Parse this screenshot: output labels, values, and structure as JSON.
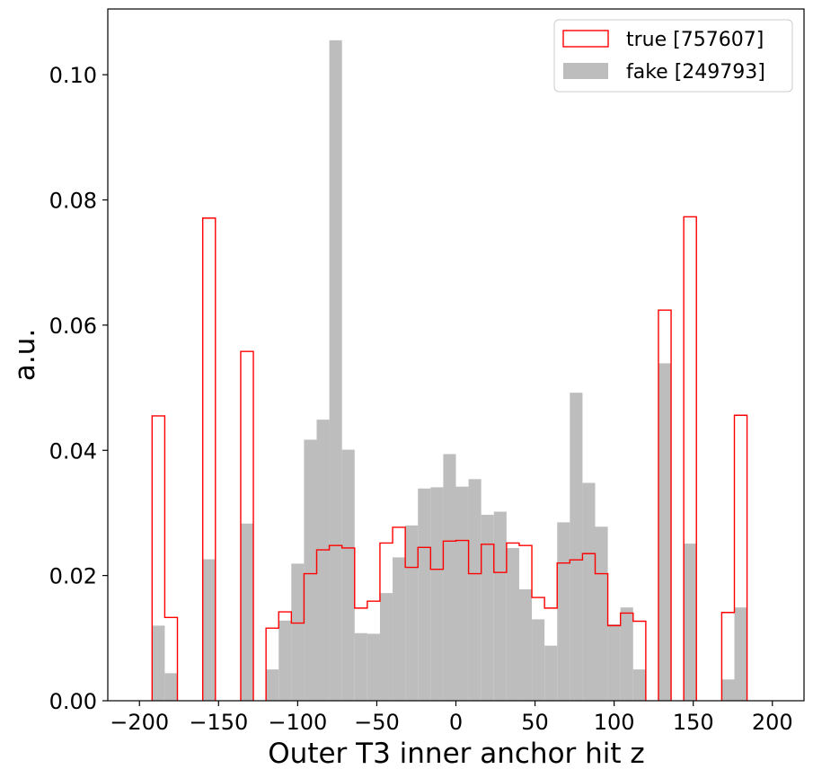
{
  "chart_data": {
    "type": "bar",
    "title": "",
    "xlabel": "Outer T3 inner anchor hit z",
    "ylabel": "a.u.",
    "xlim": [
      -220,
      220
    ],
    "ylim": [
      0,
      0.1105
    ],
    "x_ticks": [
      -200,
      -150,
      -100,
      -50,
      0,
      50,
      100,
      150,
      200
    ],
    "x_tick_labels": [
      "−200",
      "−150",
      "−100",
      "−50",
      "0",
      "50",
      "100",
      "150",
      "200"
    ],
    "y_ticks": [
      0.0,
      0.02,
      0.04,
      0.06,
      0.08,
      0.1
    ],
    "y_tick_labels": [
      "0.00",
      "0.02",
      "0.04",
      "0.06",
      "0.08",
      "0.10"
    ],
    "grid": false,
    "legend_position": "top-right",
    "bin_edges": [
      -200,
      -192,
      -184,
      -176,
      -168,
      -160,
      -152,
      -144,
      -136,
      -128,
      -120,
      -112,
      -104,
      -96,
      -88,
      -80,
      -72,
      -64,
      -56,
      -48,
      -40,
      -32,
      -24,
      -16,
      -8,
      0,
      8,
      16,
      24,
      32,
      40,
      48,
      56,
      64,
      72,
      80,
      88,
      96,
      104,
      112,
      120,
      128,
      136,
      144,
      152,
      160,
      168,
      176,
      184,
      192,
      200
    ],
    "series": [
      {
        "name": "true [757607]",
        "style": "step",
        "color": "#ff0000",
        "values": [
          0,
          0.0455,
          0.0133,
          0,
          0,
          0.0771,
          0,
          0,
          0.0558,
          0,
          0.0116,
          0.0142,
          0.0124,
          0.0203,
          0.0241,
          0.0248,
          0.0244,
          0.0148,
          0.0159,
          0.0252,
          0.0277,
          0.0213,
          0.0245,
          0.021,
          0.0255,
          0.0256,
          0.0203,
          0.025,
          0.0205,
          0.0252,
          0.0248,
          0.0165,
          0.0148,
          0.022,
          0.0225,
          0.0235,
          0.0203,
          0.012,
          0.014,
          0.0127,
          0,
          0.0624,
          0,
          0.0773,
          0,
          0,
          0.0141,
          0.0456,
          0,
          0
        ]
      },
      {
        "name": "fake [249793]",
        "style": "filled",
        "color": "#bdbdbd",
        "values": [
          0,
          0.012,
          0.0044,
          0,
          0,
          0.0226,
          0,
          0,
          0.0283,
          0,
          0.005,
          0.0128,
          0.0219,
          0.0417,
          0.0449,
          0.1055,
          0.0401,
          0.0108,
          0.0107,
          0.0172,
          0.0229,
          0.028,
          0.0339,
          0.0341,
          0.0394,
          0.0342,
          0.0354,
          0.0297,
          0.0302,
          0.0244,
          0.0178,
          0.013,
          0.0088,
          0.0285,
          0.0492,
          0.0348,
          0.0278,
          0.0122,
          0.0149,
          0.005,
          0,
          0.0539,
          0,
          0.0251,
          0,
          0,
          0.0034,
          0.0149,
          0,
          0
        ]
      }
    ]
  }
}
